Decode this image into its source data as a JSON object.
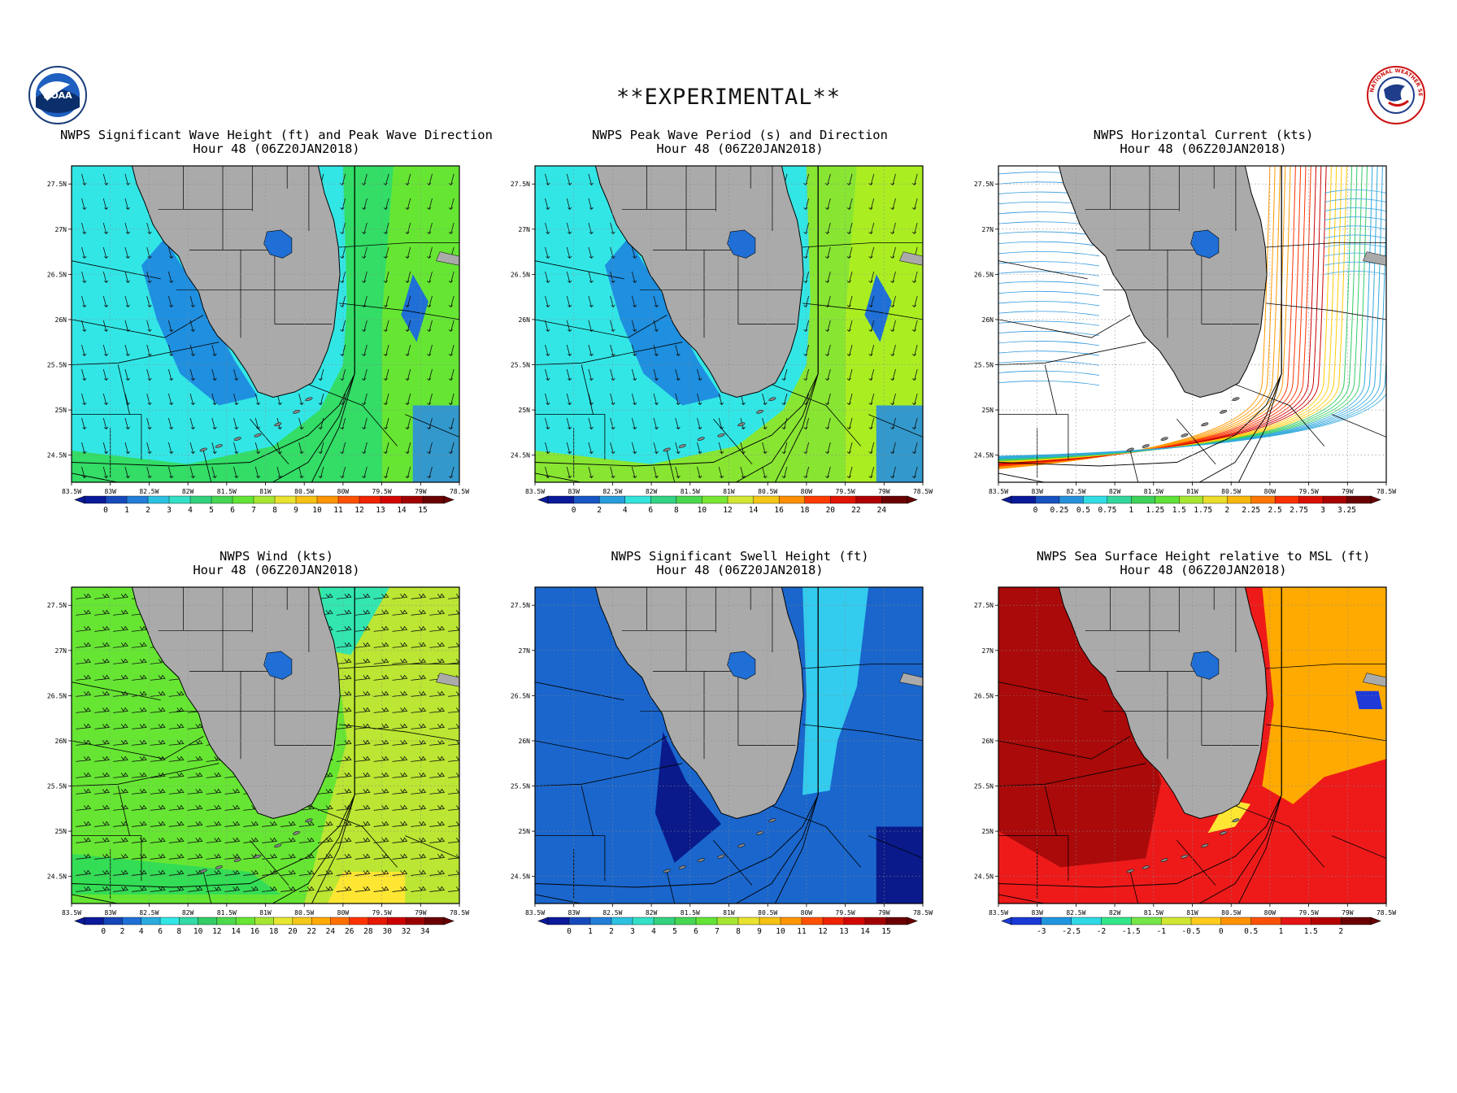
{
  "banner": "**EXPERIMENTAL**",
  "logos": {
    "left_icon": "noaa-logo-icon",
    "right_icon": "nws-logo-icon",
    "left_text": "NOAA",
    "right_text": "NATIONAL WEATHER SERVICE"
  },
  "map_axes": {
    "lon_ticks": [
      "83.5W",
      "83W",
      "82.5W",
      "82W",
      "81.5W",
      "81W",
      "80.5W",
      "80W",
      "79.5W",
      "79W",
      "78.5W"
    ],
    "lat_ticks": [
      "27.5N",
      "27N",
      "26.5N",
      "26N",
      "25.5N",
      "25N",
      "24.5N"
    ],
    "lon_range": [
      -83.5,
      -78.5
    ],
    "lat_range": [
      24.2,
      27.7
    ]
  },
  "colors": {
    "land": "#aaaaaa",
    "coast": "#000000"
  },
  "panels": [
    {
      "title": "NWPS Significant Wave Height (ft) and Peak Wave Direction",
      "subtitle": "Hour 48 (06Z20JAN2018)",
      "overlay": "arrows",
      "ocean_base": "#33e6e6",
      "colorbar": {
        "labels": [
          "0",
          "1",
          "2",
          "3",
          "4",
          "5",
          "6",
          "7",
          "8",
          "9",
          "10",
          "11",
          "12",
          "13",
          "14",
          "15"
        ]
      }
    },
    {
      "title": "NWPS Peak Wave Period (s) and Direction",
      "subtitle": "Hour 48 (06Z20JAN2018)",
      "overlay": "arrows",
      "ocean_base": "#33e6e6",
      "colorbar": {
        "labels": [
          "0",
          "2",
          "4",
          "6",
          "8",
          "10",
          "12",
          "14",
          "16",
          "18",
          "20",
          "22",
          "24"
        ]
      }
    },
    {
      "title": "NWPS Horizontal Current (kts)",
      "subtitle": "Hour 48 (06Z20JAN2018)",
      "overlay": "streamlines",
      "ocean_base": "#ffffff",
      "colorbar": {
        "labels": [
          "0",
          "0.25",
          "0.5",
          "0.75",
          "1",
          "1.25",
          "1.5",
          "1.75",
          "2",
          "2.25",
          "2.5",
          "2.75",
          "3",
          "3.25"
        ]
      }
    },
    {
      "title": "NWPS Wind (kts)",
      "subtitle": "Hour 48 (06Z20JAN2018)",
      "overlay": "barbs",
      "ocean_base": "#66e633",
      "colorbar": {
        "labels": [
          "0",
          "2",
          "4",
          "6",
          "8",
          "10",
          "12",
          "14",
          "16",
          "18",
          "20",
          "22",
          "24",
          "26",
          "28",
          "30",
          "32",
          "34"
        ]
      }
    },
    {
      "title": "NWPS Significant Swell Height (ft)",
      "subtitle": "Hour 48 (06Z20JAN2018)",
      "overlay": "none",
      "ocean_base": "#1a66cc",
      "colorbar": {
        "labels": [
          "0",
          "1",
          "2",
          "3",
          "4",
          "5",
          "6",
          "7",
          "8",
          "9",
          "10",
          "11",
          "12",
          "13",
          "14",
          "15"
        ]
      }
    },
    {
      "title": "NWPS Sea Surface Height relative to MSL (ft)",
      "subtitle": "Hour 48 (06Z20JAN2018)",
      "overlay": "none",
      "ocean_base": "#ee1a1a",
      "colorbar": {
        "labels": [
          "-3",
          "-2.5",
          "-2",
          "-1.5",
          "-1",
          "-0.5",
          "0",
          "0.5",
          "1",
          "1.5",
          "2"
        ]
      }
    }
  ]
}
